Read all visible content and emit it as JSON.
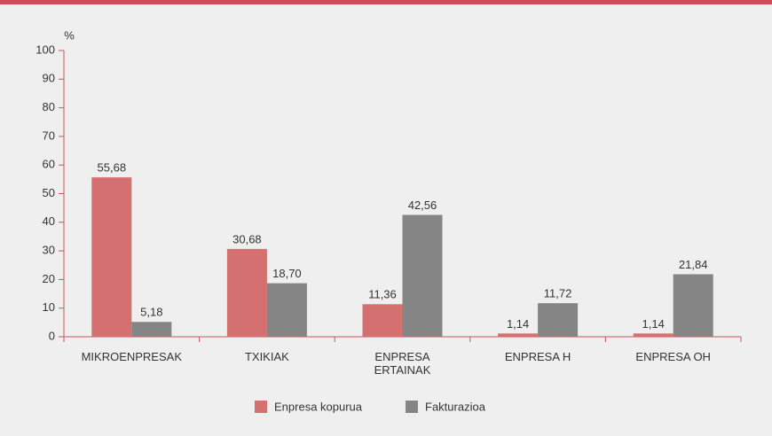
{
  "chart_data": {
    "type": "bar",
    "y_label": "%",
    "categories": [
      "MIKROENPRESAK",
      "TXIKIAK",
      "ENPRESA ERTAINAK",
      "ENPRESA H",
      "ENPRESA OH"
    ],
    "series": [
      {
        "name": "Enpresa kopurua",
        "color": "#d4706f",
        "values": [
          55.68,
          30.68,
          11.36,
          1.14,
          1.14
        ],
        "value_labels": [
          "55,68",
          "30,68",
          "11,36",
          "1,14",
          "1,14"
        ]
      },
      {
        "name": "Fakturazioa",
        "color": "#858585",
        "values": [
          5.18,
          18.7,
          42.56,
          11.72,
          21.84
        ],
        "value_labels": [
          "5,18",
          "18,70",
          "42,56",
          "11,72",
          "21,84"
        ]
      }
    ],
    "ylim": [
      0,
      100
    ],
    "yticks": [
      0,
      10,
      20,
      30,
      40,
      50,
      60,
      70,
      80,
      90,
      100
    ],
    "grid": false,
    "legend": "bottom"
  }
}
